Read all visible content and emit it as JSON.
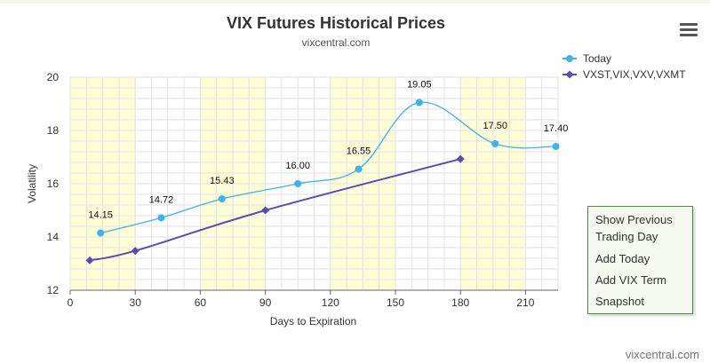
{
  "chart_data": {
    "type": "line",
    "title": "VIX Futures Historical Prices",
    "subtitle": "vixcentral.com",
    "xlabel": "Days to Expiration",
    "ylabel": "Volatility",
    "xlim": [
      0,
      225
    ],
    "ylim": [
      12,
      20
    ],
    "x_ticks": [
      "0",
      "30",
      "60",
      "90",
      "120",
      "150",
      "180",
      "210"
    ],
    "y_ticks": [
      "12",
      "14",
      "16",
      "18",
      "20"
    ],
    "legend_position": "top-right",
    "shaded_bands": [
      [
        0,
        30
      ],
      [
        60,
        90
      ],
      [
        120,
        150
      ],
      [
        180,
        210
      ]
    ],
    "series": [
      {
        "name": "Today",
        "color": "#3ab4ea",
        "smooth": true,
        "marker": "circle",
        "points": [
          {
            "x": 14,
            "y": 14.15,
            "label": "14.15"
          },
          {
            "x": 42,
            "y": 14.72,
            "label": "14.72"
          },
          {
            "x": 70,
            "y": 15.43,
            "label": "15.43"
          },
          {
            "x": 105,
            "y": 16.0,
            "label": "16.00"
          },
          {
            "x": 133,
            "y": 16.55,
            "label": "16.55"
          },
          {
            "x": 161,
            "y": 19.05,
            "label": "19.05"
          },
          {
            "x": 196,
            "y": 17.5,
            "label": "17.50"
          },
          {
            "x": 224,
            "y": 17.4,
            "label": "17.40"
          }
        ]
      },
      {
        "name": "VXST,VIX,VXV,VXMT",
        "color": "#5a4bb6",
        "smooth": true,
        "marker": "diamond",
        "points": [
          {
            "x": 9,
            "y": 13.12
          },
          {
            "x": 30,
            "y": 13.48
          },
          {
            "x": 90,
            "y": 15.0
          },
          {
            "x": 180,
            "y": 16.93
          }
        ]
      }
    ]
  },
  "panel": {
    "show_previous": "Show Previous Trading Day",
    "add_today": "Add Today",
    "add_vix_term": "Add VIX Term",
    "snapshot": "Snapshot"
  },
  "credit": "vixcentral.com",
  "colors": {
    "band": "#fdfdd6",
    "grid": "#e2e2e2",
    "panel_border": "#4e8a3f"
  }
}
